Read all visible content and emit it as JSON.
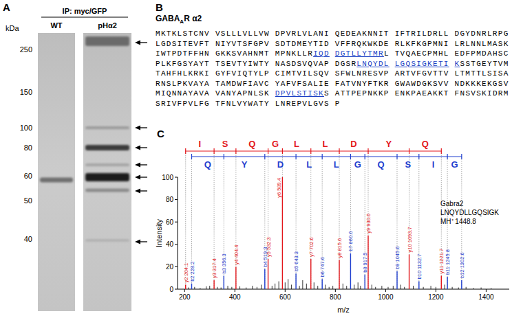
{
  "panel_labels": [
    "A",
    "B",
    "C"
  ],
  "panel_a": {
    "title": "IP: myc/GFP",
    "lanes": [
      "WT",
      "pHα2"
    ],
    "axis_label": "kDa",
    "markers": [
      250,
      150,
      100,
      80,
      60,
      50,
      40
    ]
  },
  "panel_b": {
    "title": [
      "GABA",
      "A",
      "R α2"
    ],
    "rows": [
      [
        "MKTKLSTCNV VSLLLVLLVW DPVRLVLANI QEDEAKNNIT IFTRILDRLL DGYDNRLRPG"
      ],
      [
        "LGDSITEVFT NIYVTSFGPV SDTDMEYTID VFFRQKWKDE RLKFKGPMNI LRLNNLMASK"
      ],
      [
        "IWTPDTFFHN GKKSVAHNMT MPNKLLR",
        {
          "text": "IQD",
          "underline": true
        },
        " ",
        {
          "text": "DGTLLYTMR",
          "underline": true
        },
        "L TVQAECPMHL EDFPMDAHSC"
      ],
      [
        "PLKFGSYAYT TSEVTYIWTY NASDSVQVAP DGSR",
        {
          "text": "LNQYDL",
          "underline": true
        },
        " ",
        {
          "text": "LGQSIGKETI",
          "underline": true
        },
        " ",
        {
          "text": "K",
          "underline": true
        },
        "SSTGEYTVM"
      ],
      [
        "TAHFHLKRKI GYFVIQTYLP CIMTVILSQV SFWLNRESVP ARTVFGVTTV LTMTTLSISA"
      ],
      [
        "RNSLPKVAYA TAMDWFIAVC YAFVFSALIE FATVNYFTKR GWAWDGKSVV NDKKKEKGSV"
      ],
      [
        "MIQNNAYAVA VANYAPNLSK ",
        {
          "text": "DPVLSTISK",
          "underline": true
        },
        "S ATTPEPNKKP ENKPAEAKKT FNSVSKIDRM"
      ],
      [
        "SRIVFPVLFG TFNLVYWATY LNREPVLGVS P"
      ]
    ]
  },
  "chart_data": {
    "type": "spectrum",
    "x_label": "m/z",
    "y_label": "Intensity",
    "xlim": [
      172,
      1492
    ],
    "xticks": [
      200,
      400,
      600,
      800,
      1000,
      1200,
      1400
    ],
    "ylim": [
      0,
      100
    ],
    "yticks": [
      0,
      20,
      40,
      60,
      80,
      100
    ],
    "annotations": [
      "Gabra2",
      "LNQYDLLGQSIGK",
      "MH⁺ 1448.8"
    ],
    "series": [
      {
        "color": "#e3171c",
        "x": [
          204.1,
          317.4,
          404.4,
          532.3,
          589.4,
          702.6,
          815.6,
          930.6,
          1093.7,
          1221.7
        ],
        "values": [
          4,
          8,
          20,
          27,
          100,
          27,
          26,
          48,
          31,
          12
        ],
        "point_labels": [
          "y2 204.1",
          "y3 317.4",
          "y4 404.4",
          "y5 532.3",
          "y6 589.4",
          "y7 702.6",
          "y8 815.6",
          "y9 930.6",
          "y10 1093.7",
          "y11 1221.7"
        ],
        "sequence": [
          "I",
          "S",
          "Q",
          "G",
          "L",
          "L",
          "D",
          "Y",
          "Q"
        ]
      },
      {
        "color": "#1f3fcf",
        "x": [
          228.2,
          356.3,
          519.3,
          643.3,
          747.6,
          860.6,
          917.5,
          1045.6,
          1132.7,
          1245.8,
          1302.6
        ],
        "values": [
          5,
          12,
          18,
          14,
          9,
          32,
          13,
          16,
          7,
          11,
          8
        ],
        "point_labels": [
          "b2 228.2",
          "b3 356.3",
          "b4 519.3",
          "b5 643.3",
          "b6 747.6",
          "b7 860.6",
          "b8 917.5",
          "b9 1045.6",
          "b10 1132.7",
          "b11 1245.8",
          "b12 1302.6"
        ],
        "sequence": [
          "Q",
          "Y",
          "D",
          "L",
          "L",
          "G",
          "Q",
          "S",
          "I",
          "G"
        ]
      },
      {
        "color": "#000000",
        "x": [
          215,
          240,
          262,
          286,
          300,
          330,
          345,
          372,
          388,
          420,
          445,
          470,
          488,
          505,
          548,
          560,
          575,
          600,
          612,
          625,
          657,
          670,
          685,
          715,
          730,
          760,
          775,
          790,
          830,
          845,
          875,
          890,
          900,
          945,
          960,
          985,
          1010,
          1030,
          1060,
          1075,
          1110,
          1150,
          1180,
          1200,
          1235,
          1265,
          1290,
          1320,
          1350,
          1380,
          1420
        ],
        "values": [
          1.5,
          2,
          1,
          2.5,
          3,
          2,
          1.5,
          3,
          2,
          2.5,
          1.5,
          3,
          2,
          4,
          3,
          5,
          7,
          6,
          9,
          4,
          3,
          8,
          5,
          6,
          3,
          4,
          2,
          3,
          5,
          3,
          4,
          6,
          3,
          4,
          2,
          3,
          2,
          3,
          4,
          2,
          3,
          2,
          3,
          2,
          4,
          2,
          1.5,
          2,
          1,
          1.5,
          1
        ]
      }
    ]
  }
}
